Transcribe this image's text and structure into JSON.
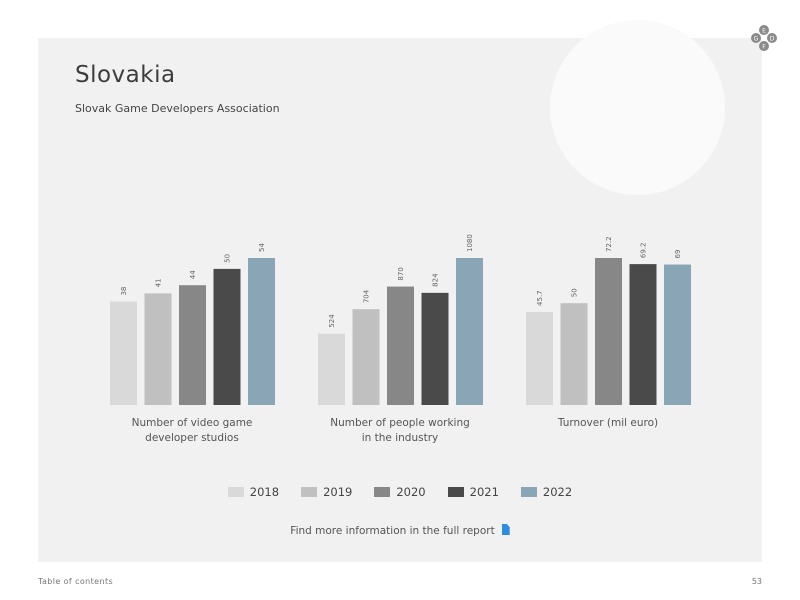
{
  "header": {
    "title": "Slovakia",
    "subtitle": "Slovak Game Developers Association"
  },
  "legend": [
    {
      "label": "2018",
      "color": "#d9d9d9"
    },
    {
      "label": "2019",
      "color": "#c0c0c0"
    },
    {
      "label": "2020",
      "color": "#878787"
    },
    {
      "label": "2021",
      "color": "#4a4a4a"
    },
    {
      "label": "2022",
      "color": "#8aa6b6"
    }
  ],
  "chart_data": [
    {
      "type": "bar",
      "title": "Number of video game developer studios",
      "caption_lines": [
        "Number of video game",
        "developer studios"
      ],
      "categories": [
        "2018",
        "2019",
        "2020",
        "2021",
        "2022"
      ],
      "values": [
        38,
        41,
        44,
        50,
        54
      ],
      "value_labels": [
        "38",
        "41",
        "44",
        "50",
        "54"
      ]
    },
    {
      "type": "bar",
      "title": "Number of people working in the industry",
      "caption_lines": [
        "Number of people working",
        "in the industry"
      ],
      "categories": [
        "2018",
        "2019",
        "2020",
        "2021",
        "2022"
      ],
      "values": [
        524,
        704,
        870,
        824,
        1080
      ],
      "value_labels": [
        "524",
        "704",
        "870",
        "824",
        "1080"
      ]
    },
    {
      "type": "bar",
      "title": "Turnover (mil euro)",
      "caption_lines": [
        "Turnover (mil euro)"
      ],
      "categories": [
        "2018",
        "2019",
        "2020",
        "2021",
        "2022"
      ],
      "values": [
        45.7,
        50,
        72.2,
        69.2,
        69
      ],
      "value_labels": [
        "45.7",
        "50",
        "72.2",
        "69.2",
        "69"
      ]
    }
  ],
  "more_info": {
    "label": "Find more information in the full report"
  },
  "footer": {
    "toc": "Table of contents",
    "page": "53"
  },
  "logo_letters": [
    "E",
    "G",
    "D",
    "F"
  ]
}
